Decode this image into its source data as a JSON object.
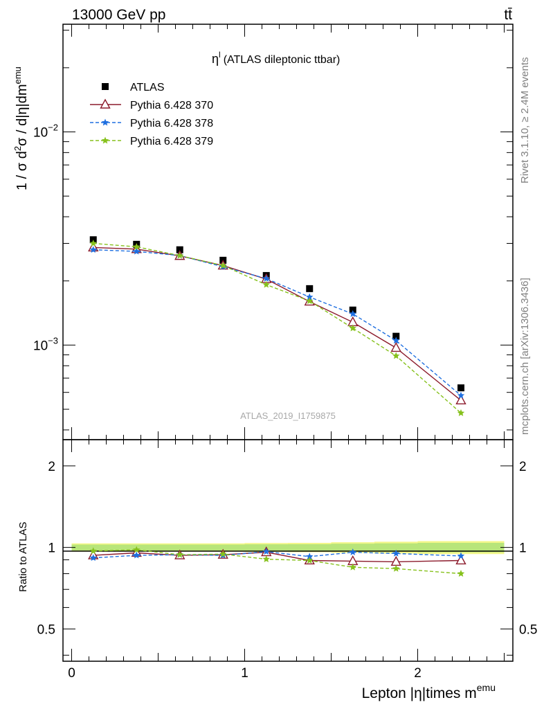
{
  "header": {
    "energy_label": "13000 GeV pp",
    "process_label": "tt̄"
  },
  "side_labels": {
    "rivet": "Rivet 3.1.10, ≥ 2.4M events",
    "mcplots": "mcplots.cern.ch [arXiv:1306.3436]"
  },
  "chart_data": [
    {
      "type": "scatter",
      "title": "η",
      "title_sup": "l",
      "subtitle": "(ATLAS dileptonic ttbar)",
      "watermark": "ATLAS_2019_I1759875",
      "ylabel": "1 / σ  d",
      "ylabel_parts": [
        "1 / σ  d",
        "2",
        "σ / d|η|dm",
        "emu"
      ],
      "yscale": "log",
      "ylim": [
        0.00036,
        0.032
      ],
      "xlim": [
        -0.05,
        2.55
      ],
      "y_ticks": [
        {
          "value": 0.01,
          "base": "10",
          "exp": "−2"
        },
        {
          "value": 0.001,
          "base": "10",
          "exp": "−3"
        }
      ],
      "legend_position": "top-left",
      "x": [
        0.125,
        0.375,
        0.625,
        0.875,
        1.125,
        1.375,
        1.625,
        1.875,
        2.25
      ],
      "series": [
        {
          "name": "ATLAS",
          "color": "#000000",
          "marker": "square",
          "values": [
            0.00312,
            0.00297,
            0.0028,
            0.0025,
            0.00212,
            0.00184,
            0.00146,
            0.0011,
            0.00063
          ]
        },
        {
          "name": "Pythia 6.428 370",
          "color": "#8b1a2b",
          "marker": "triangle-open",
          "line": "solid",
          "values": [
            0.00287,
            0.00282,
            0.00262,
            0.00236,
            0.00204,
            0.0016,
            0.00128,
            0.00097,
            0.00055
          ]
        },
        {
          "name": "Pythia 6.428 378",
          "color": "#1f6fe0",
          "marker": "star",
          "line": "dashed",
          "values": [
            0.0028,
            0.00275,
            0.00263,
            0.00233,
            0.00205,
            0.00168,
            0.0014,
            0.00105,
            0.00058
          ]
        },
        {
          "name": "Pythia 6.428 379",
          "color": "#86c11c",
          "marker": "star",
          "line": "dashed",
          "values": [
            0.003,
            0.00289,
            0.00263,
            0.00236,
            0.00192,
            0.00161,
            0.0012,
            0.00089,
            0.00048
          ]
        }
      ]
    },
    {
      "type": "line",
      "ylabel": "Ratio to ATLAS",
      "xlabel": "Lepton |η|times m",
      "xlabel_sup": "emu",
      "yscale": "log",
      "ylim": [
        0.38,
        2.5
      ],
      "xlim": [
        -0.05,
        2.55
      ],
      "y_ticks": [
        {
          "value": 2,
          "label": "2"
        },
        {
          "value": 1,
          "label": "1"
        },
        {
          "value": 0.5,
          "label": "0.5"
        }
      ],
      "x_ticks": [
        {
          "value": 0,
          "label": "0"
        },
        {
          "value": 1,
          "label": "1"
        },
        {
          "value": 2,
          "label": "2"
        }
      ],
      "x": [
        0.125,
        0.375,
        0.625,
        0.875,
        1.125,
        1.375,
        1.625,
        1.875,
        2.25
      ],
      "series": [
        {
          "name": "Pythia 6.428 370",
          "color": "#8b1a2b",
          "marker": "triangle-open",
          "line": "solid",
          "values": [
            0.935,
            0.955,
            0.935,
            0.94,
            0.96,
            0.895,
            0.89,
            0.885,
            0.895
          ]
        },
        {
          "name": "Pythia 6.428 378",
          "color": "#1f6fe0",
          "marker": "star",
          "line": "dashed",
          "values": [
            0.915,
            0.935,
            0.94,
            0.935,
            0.965,
            0.925,
            0.96,
            0.95,
            0.93
          ]
        },
        {
          "name": "Pythia 6.428 379",
          "color": "#86c11c",
          "marker": "star",
          "line": "dashed",
          "values": [
            0.97,
            0.98,
            0.94,
            0.945,
            0.905,
            0.895,
            0.845,
            0.835,
            0.8
          ]
        }
      ],
      "uncertainty_band": {
        "low": [
          0.975,
          0.975,
          0.975,
          0.975,
          0.973,
          0.972,
          0.968,
          0.965,
          0.96
        ],
        "high": [
          1.025,
          1.025,
          1.025,
          1.025,
          1.027,
          1.028,
          1.032,
          1.035,
          1.04
        ],
        "outer_low": [
          0.965,
          0.965,
          0.965,
          0.965,
          0.962,
          0.96,
          0.955,
          0.95,
          0.945
        ],
        "outer_high": [
          1.035,
          1.035,
          1.035,
          1.035,
          1.038,
          1.04,
          1.045,
          1.05,
          1.055
        ],
        "color_inner": "#b8e57a",
        "color_outer": "#f3f78a"
      }
    }
  ]
}
